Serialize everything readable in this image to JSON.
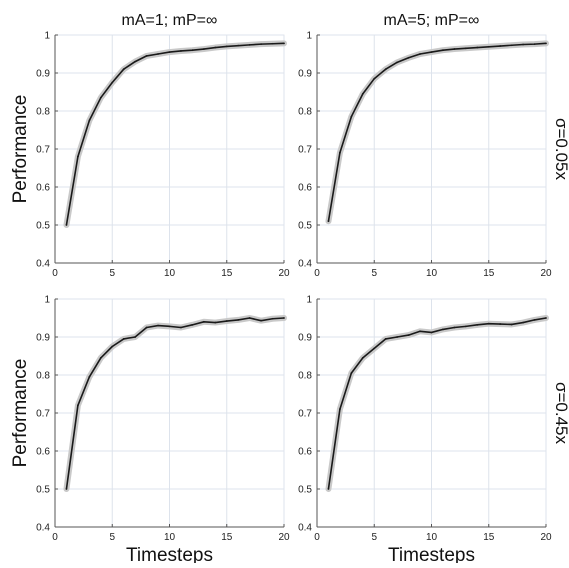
{
  "chart_data": [
    {
      "type": "line",
      "title": "mA=1; mP=∞",
      "ylabel": "Performance",
      "xlabel": "",
      "row_label": "",
      "x": [
        1,
        2,
        3,
        4,
        5,
        6,
        7,
        8,
        9,
        10,
        11,
        12,
        13,
        14,
        15,
        16,
        17,
        18,
        19,
        20
      ],
      "series": [
        {
          "values": [
            0.5,
            0.68,
            0.775,
            0.835,
            0.875,
            0.91,
            0.93,
            0.945,
            0.95,
            0.955,
            0.958,
            0.96,
            0.963,
            0.967,
            0.97,
            0.972,
            0.974,
            0.976,
            0.977,
            0.978
          ]
        }
      ],
      "xlim": [
        0,
        20
      ],
      "ylim": [
        0.4,
        1
      ],
      "xticks": [
        0,
        5,
        10,
        15,
        20
      ],
      "yticks": [
        0.4,
        0.5,
        0.6,
        0.7,
        0.8,
        0.9,
        1
      ],
      "ytick_labels": [
        "0.4",
        "0.5",
        "0.6",
        "0.7",
        "0.8",
        "0.9",
        "1"
      ],
      "grid": true,
      "colors": {
        "line": "#1a1a1a",
        "band": "#c9c9c9",
        "grid": "#dde3ec",
        "axis": "#555555"
      }
    },
    {
      "type": "line",
      "title": "mA=5; mP=∞",
      "ylabel": "",
      "xlabel": "",
      "row_label": "σ=0.05x",
      "x": [
        1,
        2,
        3,
        4,
        5,
        6,
        7,
        8,
        9,
        10,
        11,
        12,
        13,
        14,
        15,
        16,
        17,
        18,
        19,
        20
      ],
      "series": [
        {
          "values": [
            0.51,
            0.69,
            0.785,
            0.845,
            0.885,
            0.91,
            0.928,
            0.94,
            0.95,
            0.955,
            0.96,
            0.963,
            0.965,
            0.967,
            0.969,
            0.971,
            0.973,
            0.975,
            0.976,
            0.978
          ]
        }
      ],
      "xlim": [
        0,
        20
      ],
      "ylim": [
        0.4,
        1
      ],
      "xticks": [
        0,
        5,
        10,
        15,
        20
      ],
      "yticks": [
        0.4,
        0.5,
        0.6,
        0.7,
        0.8,
        0.9,
        1
      ],
      "ytick_labels": [
        "0.4",
        "0.5",
        "0.6",
        "0.7",
        "0.8",
        "0.9",
        "1"
      ],
      "grid": true,
      "colors": {
        "line": "#1a1a1a",
        "band": "#c9c9c9",
        "grid": "#dde3ec",
        "axis": "#555555"
      }
    },
    {
      "type": "line",
      "title": "",
      "ylabel": "Performance",
      "xlabel": "Timesteps",
      "row_label": "",
      "x": [
        1,
        2,
        3,
        4,
        5,
        6,
        7,
        8,
        9,
        10,
        11,
        12,
        13,
        14,
        15,
        16,
        17,
        18,
        19,
        20
      ],
      "series": [
        {
          "values": [
            0.5,
            0.72,
            0.795,
            0.845,
            0.875,
            0.895,
            0.9,
            0.925,
            0.93,
            0.928,
            0.925,
            0.932,
            0.94,
            0.938,
            0.942,
            0.945,
            0.95,
            0.943,
            0.948,
            0.95
          ]
        }
      ],
      "xlim": [
        0,
        20
      ],
      "ylim": [
        0.4,
        1
      ],
      "xticks": [
        0,
        5,
        10,
        15,
        20
      ],
      "yticks": [
        0.4,
        0.5,
        0.6,
        0.7,
        0.8,
        0.9,
        1
      ],
      "ytick_labels": [
        "0.4",
        "0.5",
        "0.6",
        "0.7",
        "0.8",
        "0.9",
        "1"
      ],
      "grid": true,
      "colors": {
        "line": "#1a1a1a",
        "band": "#c9c9c9",
        "grid": "#dde3ec",
        "axis": "#555555"
      }
    },
    {
      "type": "line",
      "title": "",
      "ylabel": "",
      "xlabel": "Timesteps",
      "row_label": "σ=0.45x",
      "x": [
        1,
        2,
        3,
        4,
        5,
        6,
        7,
        8,
        9,
        10,
        11,
        12,
        13,
        14,
        15,
        16,
        17,
        18,
        19,
        20
      ],
      "series": [
        {
          "values": [
            0.5,
            0.71,
            0.805,
            0.845,
            0.87,
            0.895,
            0.9,
            0.905,
            0.915,
            0.912,
            0.92,
            0.925,
            0.928,
            0.932,
            0.935,
            0.934,
            0.933,
            0.938,
            0.945,
            0.95
          ]
        }
      ],
      "xlim": [
        0,
        20
      ],
      "ylim": [
        0.4,
        1
      ],
      "xticks": [
        0,
        5,
        10,
        15,
        20
      ],
      "yticks": [
        0.4,
        0.5,
        0.6,
        0.7,
        0.8,
        0.9,
        1
      ],
      "ytick_labels": [
        "0.4",
        "0.5",
        "0.6",
        "0.7",
        "0.8",
        "0.9",
        "1"
      ],
      "grid": true,
      "colors": {
        "line": "#1a1a1a",
        "band": "#c9c9c9",
        "grid": "#dde3ec",
        "axis": "#555555"
      }
    }
  ]
}
